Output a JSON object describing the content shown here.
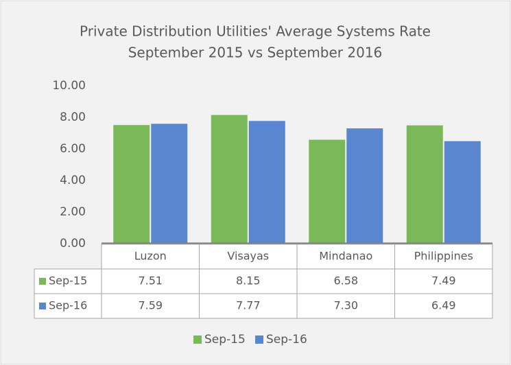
{
  "chart_data": {
    "type": "bar",
    "title": "Private Distribution Utilities' Average Systems Rate",
    "subtitle": "September 2015 vs September 2016",
    "categories": [
      "Luzon",
      "Visayas",
      "Mindanao",
      "Philippines"
    ],
    "series": [
      {
        "name": "Sep-15",
        "color": "#7ab85a",
        "values": [
          7.51,
          8.15,
          6.58,
          7.49
        ],
        "value_labels": [
          "7.51",
          "8.15",
          "6.58",
          "7.49"
        ]
      },
      {
        "name": "Sep-16",
        "color": "#5a86d0",
        "values": [
          7.59,
          7.77,
          7.3,
          6.49
        ],
        "value_labels": [
          "7.59",
          "7.77",
          "7.30",
          "6.49"
        ]
      }
    ],
    "ylim": [
      0,
      10
    ],
    "yticks": [
      {
        "value": 0,
        "label": "0.00"
      },
      {
        "value": 2,
        "label": "2.00"
      },
      {
        "value": 4,
        "label": "4.00"
      },
      {
        "value": 6,
        "label": "6.00"
      },
      {
        "value": 8,
        "label": "8.00"
      },
      {
        "value": 10,
        "label": "10.00"
      }
    ],
    "grid": false,
    "legend": "bottom"
  }
}
